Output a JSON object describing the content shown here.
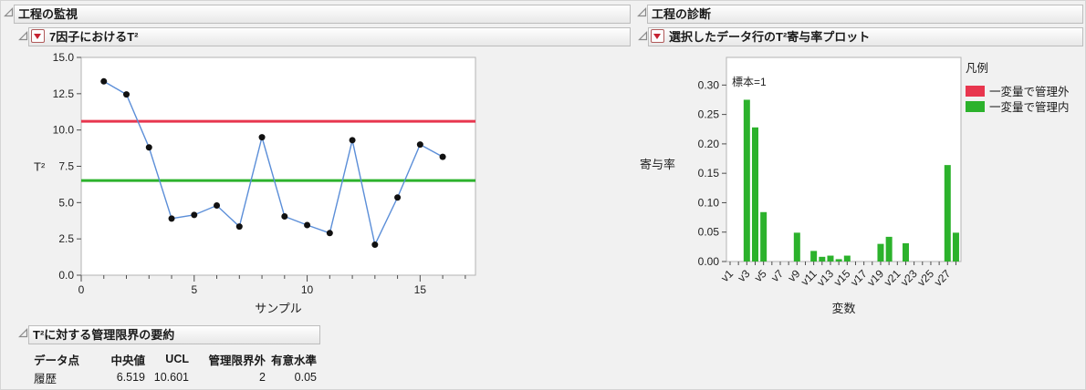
{
  "panels": {
    "monitor": {
      "title": "工程の監視",
      "chart_title": "7因子におけるT²",
      "summary": {
        "title": "T²に対する管理限界の要約",
        "columns": [
          "データ点",
          "中央値",
          "UCL",
          "管理限界外",
          "有意水準"
        ],
        "rows": [
          [
            "履歴",
            "6.519",
            "10.601",
            "2",
            "0.05"
          ]
        ]
      }
    },
    "diagnose": {
      "title": "工程の診断",
      "chart_title": "選択したデータ行のT²寄与率プロット",
      "legend": {
        "title": "凡例",
        "items": [
          {
            "label": "一変量で管理外",
            "color": "#e8364e"
          },
          {
            "label": "一変量で管理内",
            "color": "#2cb22c"
          }
        ]
      }
    }
  },
  "chart_data": [
    {
      "type": "line",
      "title": "7因子におけるT²",
      "xlabel": "サンプル",
      "ylabel": "T²",
      "x": [
        1,
        2,
        3,
        4,
        5,
        6,
        7,
        8,
        9,
        10,
        11,
        12,
        13,
        14,
        15,
        16
      ],
      "y": [
        13.35,
        12.45,
        8.8,
        3.9,
        4.15,
        4.8,
        3.35,
        9.5,
        4.05,
        3.45,
        2.9,
        9.3,
        2.1,
        5.35,
        9.0,
        8.15
      ],
      "ucl": 10.601,
      "median": 6.519,
      "xlim": [
        0,
        17.45
      ],
      "ylim": [
        0,
        15
      ],
      "yticks": [
        0,
        2.5,
        5,
        7.5,
        10,
        12.5,
        15
      ],
      "xticks": [
        0,
        5,
        10,
        15
      ],
      "grid": false,
      "legend_position": "none",
      "colors": {
        "ucl": "#e8364e",
        "median": "#2cb22c",
        "line": "#5b8ed8",
        "point": "#111111"
      }
    },
    {
      "type": "bar",
      "title": "選択したデータ行のT²寄与率プロット",
      "xlabel": "変数",
      "ylabel": "寄与率",
      "annotation": "標本=1",
      "categories": [
        "v1",
        "v2",
        "v3",
        "v4",
        "v5",
        "v6",
        "v7",
        "v8",
        "v9",
        "v10",
        "v11",
        "v12",
        "v13",
        "v14",
        "v15",
        "v16",
        "v17",
        "v18",
        "v19",
        "v20",
        "v21",
        "v22",
        "v23",
        "v24",
        "v25",
        "v26",
        "v27",
        "v28"
      ],
      "values": [
        0,
        0,
        0.275,
        0.228,
        0.084,
        0,
        0,
        0,
        0.049,
        0,
        0.018,
        0.008,
        0.01,
        0.004,
        0.01,
        0,
        0,
        0,
        0.03,
        0.042,
        0,
        0.031,
        0,
        0,
        0,
        0,
        0.164,
        0.049
      ],
      "bar_color": "#2cb22c",
      "ylim": [
        0,
        0.347
      ],
      "yticks": [
        0,
        0.05,
        0.1,
        0.15,
        0.2,
        0.25,
        0.3
      ],
      "x_labeled_ticks": [
        "v1",
        "v3",
        "v5",
        "v7",
        "v9",
        "v11",
        "v13",
        "v15",
        "v17",
        "v19",
        "v21",
        "v23",
        "v25",
        "v27"
      ],
      "grid": false,
      "legend_position": "right"
    }
  ]
}
